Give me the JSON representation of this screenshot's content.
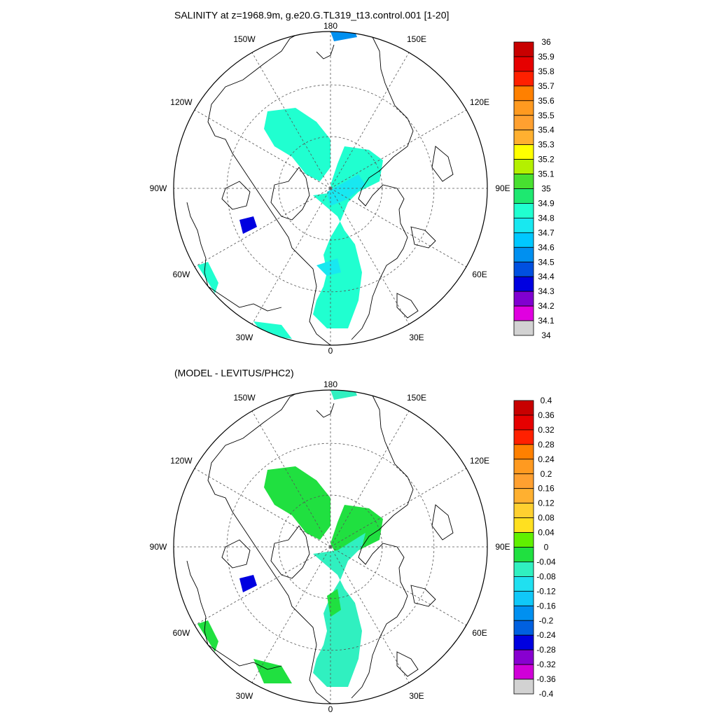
{
  "chart_data": [
    {
      "type": "heatmap",
      "projection": "north-polar-stereographic",
      "title": "SALINITY at z=1968.9m, g.e20.G.TL319_t13.control.001 [1-20]",
      "longitude_labels": [
        "180",
        "150E",
        "120E",
        "90E",
        "60E",
        "30E",
        "0",
        "30W",
        "60W",
        "90W",
        "120W",
        "150W"
      ],
      "colorbar": {
        "labels": [
          "36",
          "35.9",
          "35.8",
          "35.7",
          "35.6",
          "35.5",
          "35.4",
          "35.3",
          "35.2",
          "35.1",
          "35",
          "34.9",
          "34.8",
          "34.7",
          "34.6",
          "34.5",
          "34.4",
          "34.3",
          "34.2",
          "34.1",
          "34"
        ],
        "colors": [
          "#c80000",
          "#e60000",
          "#ff2000",
          "#ff8000",
          "#ff9a20",
          "#ffa030",
          "#ffb030",
          "#ffff00",
          "#b4f000",
          "#48e030",
          "#1ee870",
          "#20ffd0",
          "#18e8f0",
          "#00c8ff",
          "#0090f0",
          "#0050e0",
          "#0000e0",
          "#8000d0",
          "#e000e0",
          "#d2d2d2",
          "#707070"
        ]
      }
    },
    {
      "type": "heatmap",
      "projection": "north-polar-stereographic",
      "title": "(MODEL - LEVITUS/PHC2)",
      "longitude_labels": [
        "180",
        "150E",
        "120E",
        "90E",
        "60E",
        "30E",
        "0",
        "30W",
        "60W",
        "90W",
        "120W",
        "150W"
      ],
      "colorbar": {
        "labels": [
          "0.4",
          "0.36",
          "0.32",
          "0.28",
          "0.24",
          "0.2",
          "0.16",
          "0.12",
          "0.08",
          "0.04",
          "0",
          "-0.04",
          "-0.08",
          "-0.12",
          "-0.16",
          "-0.2",
          "-0.24",
          "-0.28",
          "-0.32",
          "-0.36",
          "-0.4"
        ],
        "colors": [
          "#c80000",
          "#e60000",
          "#ff2000",
          "#ff8000",
          "#ff9a20",
          "#ffa030",
          "#ffb030",
          "#ffd030",
          "#ffe020",
          "#60f000",
          "#20e040",
          "#30f0c0",
          "#20e0f0",
          "#10c8f8",
          "#0090f0",
          "#0060e0",
          "#0000e0",
          "#8800d0",
          "#d000d8",
          "#d2d2d2",
          "#707070"
        ]
      }
    }
  ]
}
